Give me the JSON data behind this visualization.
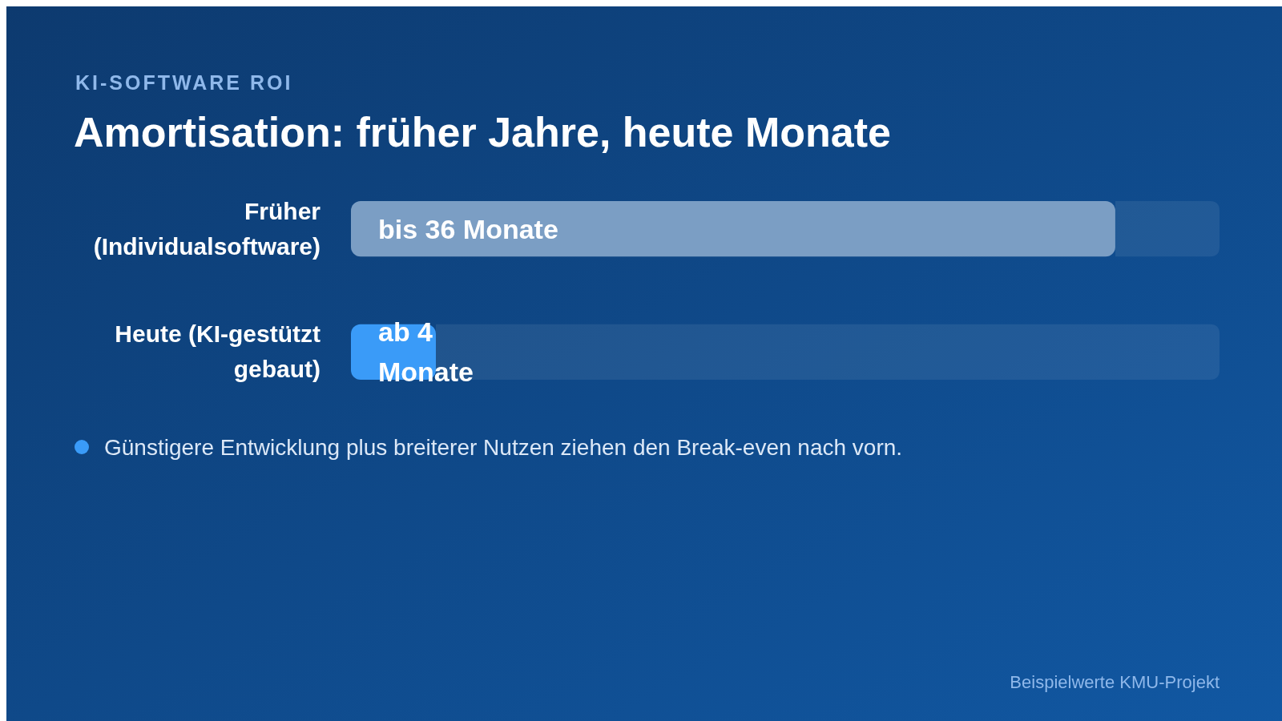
{
  "chart_data": {
    "type": "bar",
    "orientation": "horizontal",
    "subtitle": "KI-SOFTWARE ROI",
    "title": "Amortisation: früher Jahre, heute Monate",
    "categories": [
      "Früher (Individualsoftware)",
      "Heute (KI-gestützt gebaut)"
    ],
    "values": [
      36,
      4
    ],
    "colors": [
      "#7b9ec4",
      "#3a9bf8"
    ],
    "value_labels": [
      "bis 36 Monate",
      "ab 4 Monate"
    ],
    "annotations": [
      "Günstigere Entwicklung plus breiterer Nutzen ziehen den Break-even nach vorn.",
      "Beispielwerte KMU-Projekt"
    ]
  }
}
